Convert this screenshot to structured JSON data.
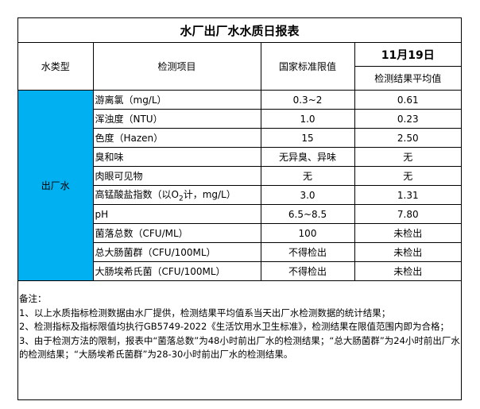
{
  "title": "水厂出厂水水质日报表",
  "headers": {
    "type": "水类型",
    "item": "检测项目",
    "standard": "国家标准限值",
    "date": "11月19日",
    "result": "检测结果平均值"
  },
  "water_type": "出厂水",
  "type_color": "#00B0F0",
  "rows": [
    {
      "item": "游离氯（mg/L）",
      "standard": "0.3~2",
      "result": "0.61"
    },
    {
      "item": "浑浊度（NTU）",
      "standard": "1.0",
      "result": "0.23"
    },
    {
      "item": "色度（Hazen）",
      "standard": "15",
      "result": "2.50"
    },
    {
      "item": "臭和味",
      "standard": "无异臭、异味",
      "result": "无"
    },
    {
      "item": "肉眼可见物",
      "standard": "无",
      "result": "无"
    },
    {
      "item_pre": "高锰酸盐指数（以O",
      "item_sub": "2",
      "item_post": "计，mg/L）",
      "standard": "3.0",
      "result": "1.31"
    },
    {
      "item": "pH",
      "standard": "6.5~8.5",
      "result": "7.80"
    },
    {
      "item": "菌落总数（CFU/ML）",
      "standard": "100",
      "result": "未检出"
    },
    {
      "item": "总大肠菌群（CFU/100ML）",
      "standard": "不得检出",
      "result": "未检出"
    },
    {
      "item": "大肠埃希氏菌（CFU/100ML）",
      "standard": "不得检出",
      "result": "未检出"
    }
  ],
  "notes": {
    "label": "备注：",
    "lines": [
      "1、以上水质指标检测数据由水厂提供，检测结果平均值系当天出厂水检测数据的统计结果；",
      "2、检测指标及指标限值均执行GB5749-2022《生活饮用水卫生标准》，检测结果在限值范围内即为合格；",
      "3、由于检测方法的限制，报表中“菌落总数”为48小时前出厂水的检测结果；“总大肠菌群”为24小时前出厂水的检测结果；“大肠埃希氏菌群”为28-30小时前出厂水的检测结果。"
    ]
  }
}
